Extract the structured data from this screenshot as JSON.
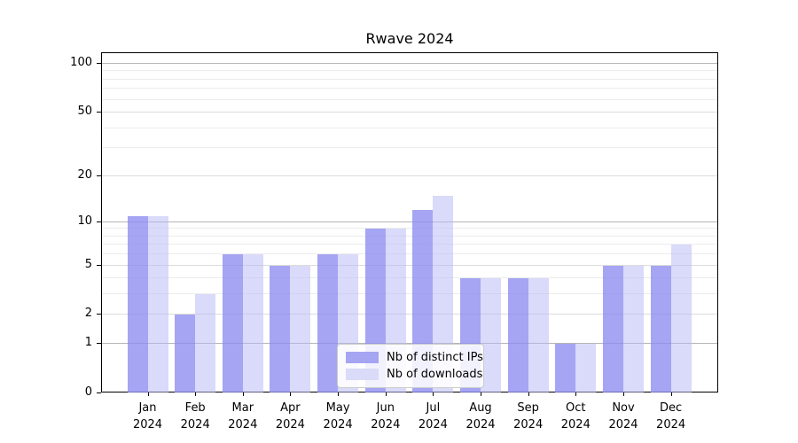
{
  "title": "Rwave 2024",
  "chart_data": {
    "type": "bar",
    "title": "Rwave 2024",
    "categories": [
      "Jan 2024",
      "Feb 2024",
      "Mar 2024",
      "Apr 2024",
      "May 2024",
      "Jun 2024",
      "Jul 2024",
      "Aug 2024",
      "Sep 2024",
      "Oct 2024",
      "Nov 2024",
      "Dec 2024"
    ],
    "series": [
      {
        "name": "Nb of distinct IPs",
        "color": "#a5a5f3",
        "rgba": "rgba(140,140,240,0.78)",
        "values": [
          11,
          2,
          6,
          5,
          6,
          9,
          12,
          4,
          4,
          1,
          5,
          5
        ]
      },
      {
        "name": "Nb of downloads",
        "color": "#dadaf9",
        "rgba": "rgba(185,185,245,0.52)",
        "values": [
          11,
          3,
          6,
          5,
          6,
          9,
          15,
          4,
          4,
          1,
          5,
          7
        ]
      }
    ],
    "xlabel": "",
    "ylabel": "",
    "y_scale": "log(value+1)",
    "y_ticks": [
      0,
      1,
      2,
      5,
      10,
      20,
      50,
      100
    ],
    "ylim": [
      0,
      116
    ],
    "grid": true,
    "gridlines_major": [
      1,
      10,
      100
    ],
    "gridlines_mid": [
      2,
      5,
      20,
      50
    ],
    "gridlines_minor": [
      3,
      4,
      6,
      7,
      8,
      9,
      30,
      40,
      60,
      70,
      80,
      90
    ],
    "legend_position": "lower center"
  },
  "colors": {
    "spine": "#000000",
    "grid_major": "#b5b5b5",
    "grid_mid": "#dcdcdc",
    "grid_minor": "#ececec",
    "legend_border": "#cccccc",
    "text": "#000000"
  }
}
